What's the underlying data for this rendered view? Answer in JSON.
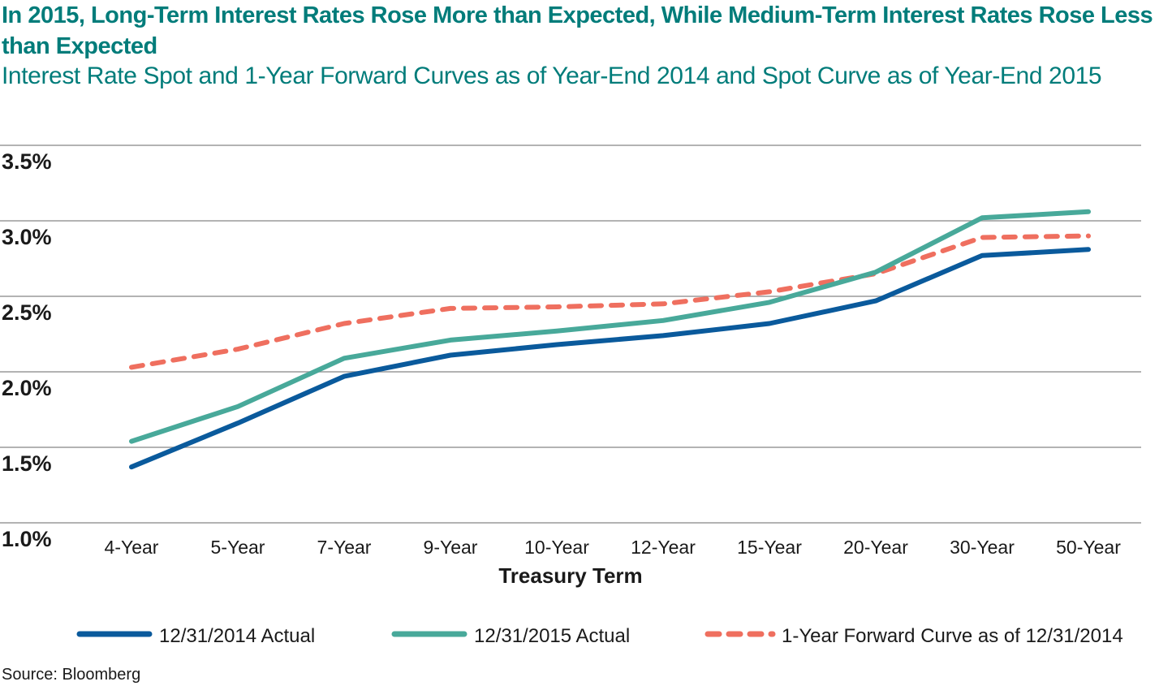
{
  "header": {
    "title": "In 2015, Long-Term Interest Rates Rose More than Expected, While Medium-Term Interest Rates Rose Less than Expected",
    "subtitle": "Interest Rate Spot and 1-Year Forward Curves as of Year-End 2014 and Spot Curve as of Year-End 2015"
  },
  "footer": {
    "source": "Source: Bloomberg"
  },
  "chart_data": {
    "type": "line",
    "title": "In 2015, Long-Term Interest Rates Rose More than Expected, While Medium-Term Interest Rates Rose Less than Expected",
    "subtitle": "Interest Rate Spot and 1-Year Forward Curves as of Year-End 2014 and Spot Curve as of Year-End 2015",
    "xlabel": "Treasury Term",
    "ylabel": "",
    "categories": [
      "4-Year",
      "5-Year",
      "7-Year",
      "9-Year",
      "10-Year",
      "12-Year",
      "15-Year",
      "20-Year",
      "30-Year",
      "50-Year"
    ],
    "ylim": [
      1.0,
      3.5
    ],
    "yticks": [
      1.0,
      1.5,
      2.0,
      2.5,
      3.0,
      3.5
    ],
    "ytick_labels": [
      "1.0%",
      "1.5%",
      "2.0%",
      "2.5%",
      "3.0%",
      "3.5%"
    ],
    "grid": "horizontal",
    "legend_position": "bottom",
    "series": [
      {
        "name": "12/31/2014 Actual",
        "color": "#0a5a9c",
        "style": "solid",
        "values": [
          1.37,
          1.66,
          1.97,
          2.11,
          2.18,
          2.24,
          2.32,
          2.47,
          2.77,
          2.81
        ]
      },
      {
        "name": "12/31/2015 Actual",
        "color": "#48a99a",
        "style": "solid",
        "values": [
          1.54,
          1.77,
          2.09,
          2.21,
          2.27,
          2.34,
          2.46,
          2.66,
          3.02,
          3.06
        ]
      },
      {
        "name": "1-Year Forward Curve as of 12/31/2014",
        "color": "#ef6f5f",
        "style": "dashed",
        "values": [
          2.03,
          2.15,
          2.32,
          2.42,
          2.43,
          2.45,
          2.53,
          2.65,
          2.89,
          2.9
        ]
      }
    ]
  }
}
